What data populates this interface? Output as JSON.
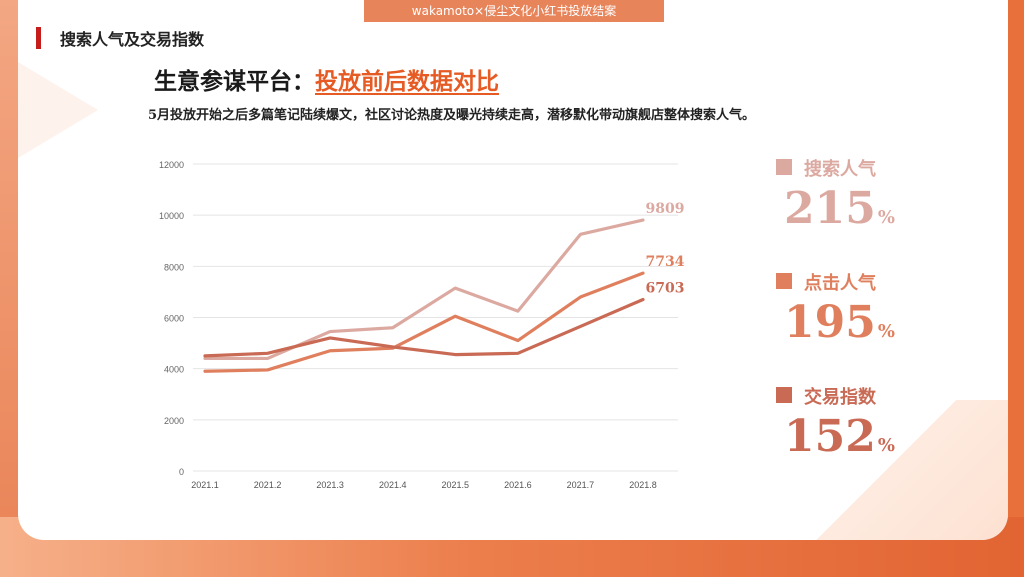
{
  "header": {
    "banner": "wakamoto×侵尘文化小红书投放结案",
    "section_title": "搜索人气及交易指数"
  },
  "headline": {
    "prefix": "生意参谋平台：",
    "highlight": "投放前后数据对比"
  },
  "subtitle": "5月投放开始之后多篇笔记陆续爆文，社区讨论热度及曝光持续走高，潜移默化带动旗舰店整体搜索人气。",
  "colors": {
    "accent": "#e65a23",
    "series_search": "#dca9a1",
    "series_click": "#df7f5e",
    "series_trade": "#c96a55",
    "grid": "#e4e4e4"
  },
  "chart_data": {
    "type": "line",
    "categories": [
      "2021.1",
      "2021.2",
      "2021.3",
      "2021.4",
      "2021.5",
      "2021.6",
      "2021.7",
      "2021.8"
    ],
    "y_ticks": [
      0,
      2000,
      4000,
      6000,
      8000,
      10000,
      12000
    ],
    "ylim": [
      0,
      12000
    ],
    "grid": true,
    "series": [
      {
        "name": "搜索人气",
        "values": [
          4400,
          4400,
          5450,
          5600,
          7150,
          6250,
          9250,
          9809
        ],
        "end_label": "9809"
      },
      {
        "name": "点击人气",
        "values": [
          3900,
          3950,
          4700,
          4800,
          6050,
          5100,
          6800,
          7734
        ],
        "end_label": "7734"
      },
      {
        "name": "交易指数",
        "values": [
          4500,
          4600,
          5200,
          4850,
          4550,
          4600,
          5650,
          6703
        ],
        "end_label": "6703"
      }
    ]
  },
  "legend": [
    {
      "label": "搜索人气",
      "value": "215",
      "unit": "%"
    },
    {
      "label": "点击人气",
      "value": "195",
      "unit": "%"
    },
    {
      "label": "交易指数",
      "value": "152",
      "unit": "%"
    }
  ]
}
